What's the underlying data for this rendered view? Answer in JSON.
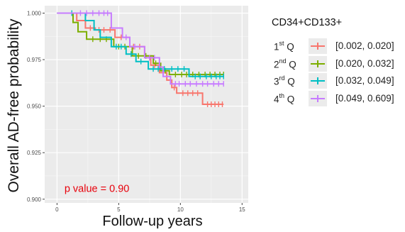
{
  "chart_data": {
    "type": "line",
    "xlabel": "Follow-up years",
    "ylabel": "Overall AD-free probability",
    "xlim": [
      -1,
      15.5
    ],
    "ylim": [
      0.898,
      1.004
    ],
    "x_ticks": [
      0,
      5,
      10,
      15
    ],
    "y_ticks": [
      0.9,
      0.925,
      0.95,
      0.975,
      1.0
    ],
    "x_tick_labels": [
      "0",
      "5",
      "10",
      "15"
    ],
    "y_tick_labels": [
      "0.900",
      "0.925",
      "0.950",
      "0.975",
      "1.000"
    ],
    "grid": true,
    "annotation": {
      "text": "p value = 0.90",
      "x": 0.6,
      "y": 0.904,
      "color": "#e8000b"
    },
    "legend": {
      "title": "CD34+CD133+",
      "placement": "right",
      "entries": [
        {
          "q_num": "1",
          "q_sup": "st",
          "q_letter": "Q",
          "range": "[0.002, 0.020]",
          "color": "#f8766d"
        },
        {
          "q_num": "2",
          "q_sup": "nd",
          "q_letter": "Q",
          "range": "[0.020, 0.032]",
          "color": "#7cae00"
        },
        {
          "q_num": "3",
          "q_sup": "rd",
          "q_letter": "Q",
          "range": "[0.032, 0.049]",
          "color": "#00bfc4"
        },
        {
          "q_num": "4",
          "q_sup": "th",
          "q_letter": "Q",
          "range": "[0.049, 0.609]",
          "color": "#c77cff"
        }
      ]
    },
    "series": [
      {
        "color": "#f8766d",
        "steps": [
          [
            0,
            1.0
          ],
          [
            1.6,
            1.0
          ],
          [
            1.6,
            0.996
          ],
          [
            2.3,
            0.996
          ],
          [
            2.3,
            0.992
          ],
          [
            3.1,
            0.992
          ],
          [
            3.1,
            0.991
          ],
          [
            4.7,
            0.991
          ],
          [
            4.7,
            0.987
          ],
          [
            5.9,
            0.987
          ],
          [
            5.9,
            0.982
          ],
          [
            7.1,
            0.982
          ],
          [
            7.1,
            0.977
          ],
          [
            7.6,
            0.977
          ],
          [
            7.6,
            0.972
          ],
          [
            8.3,
            0.972
          ],
          [
            8.3,
            0.968
          ],
          [
            8.9,
            0.968
          ],
          [
            8.9,
            0.964
          ],
          [
            9.3,
            0.964
          ],
          [
            9.3,
            0.96
          ],
          [
            9.7,
            0.96
          ],
          [
            9.7,
            0.957
          ],
          [
            11.8,
            0.957
          ],
          [
            11.8,
            0.951
          ],
          [
            13.5,
            0.951
          ]
        ],
        "censor_x": [
          2.7,
          3.4,
          3.8,
          4.3,
          5.2,
          6.2,
          6.7,
          7.9,
          8.6,
          9.5,
          10.2,
          10.6,
          11.0,
          11.4,
          12.2,
          12.5,
          12.8,
          13.1,
          13.4
        ]
      },
      {
        "color": "#7cae00",
        "steps": [
          [
            0,
            1.0
          ],
          [
            1.3,
            1.0
          ],
          [
            1.3,
            0.995
          ],
          [
            1.7,
            0.995
          ],
          [
            1.7,
            0.99
          ],
          [
            2.4,
            0.99
          ],
          [
            2.4,
            0.986
          ],
          [
            4.6,
            0.986
          ],
          [
            4.6,
            0.982
          ],
          [
            6.1,
            0.982
          ],
          [
            6.1,
            0.977
          ],
          [
            7.8,
            0.977
          ],
          [
            7.8,
            0.973
          ],
          [
            8.4,
            0.973
          ],
          [
            8.4,
            0.969
          ],
          [
            9.1,
            0.969
          ],
          [
            9.1,
            0.967
          ],
          [
            13.5,
            0.967
          ]
        ],
        "censor_x": [
          2.9,
          3.5,
          4.0,
          5.0,
          5.5,
          6.6,
          7.2,
          8.0,
          8.8,
          9.6,
          10.1,
          10.5,
          11.0,
          11.5,
          12.0,
          12.4,
          12.8,
          13.2,
          13.5
        ]
      },
      {
        "color": "#00bfc4",
        "steps": [
          [
            0,
            1.0
          ],
          [
            2.3,
            1.0
          ],
          [
            2.3,
            0.996
          ],
          [
            3.0,
            0.996
          ],
          [
            3.0,
            0.991
          ],
          [
            3.5,
            0.991
          ],
          [
            3.5,
            0.987
          ],
          [
            4.4,
            0.987
          ],
          [
            4.4,
            0.982
          ],
          [
            5.6,
            0.982
          ],
          [
            5.6,
            0.978
          ],
          [
            6.4,
            0.978
          ],
          [
            6.4,
            0.974
          ],
          [
            7.4,
            0.974
          ],
          [
            7.4,
            0.97
          ],
          [
            10.7,
            0.97
          ],
          [
            10.7,
            0.966
          ],
          [
            13.5,
            0.966
          ]
        ],
        "censor_x": [
          1.2,
          4.8,
          5.2,
          6.0,
          6.8,
          7.8,
          8.2,
          8.7,
          9.3,
          9.8,
          10.3,
          11.2,
          11.6,
          12.1,
          12.5,
          12.9,
          13.2,
          13.5
        ]
      },
      {
        "color": "#c77cff",
        "steps": [
          [
            0,
            1.0
          ],
          [
            4.4,
            1.0
          ],
          [
            4.4,
            0.992
          ],
          [
            5.3,
            0.992
          ],
          [
            5.3,
            0.987
          ],
          [
            5.9,
            0.987
          ],
          [
            5.9,
            0.982
          ],
          [
            7.1,
            0.982
          ],
          [
            7.1,
            0.976
          ],
          [
            8.3,
            0.976
          ],
          [
            8.3,
            0.971
          ],
          [
            8.6,
            0.971
          ],
          [
            8.6,
            0.966
          ],
          [
            9.2,
            0.966
          ],
          [
            9.2,
            0.962
          ],
          [
            13.5,
            0.962
          ]
        ],
        "censor_x": [
          1.9,
          2.4,
          2.9,
          3.4,
          3.8,
          4.1,
          5.6,
          6.3,
          7.5,
          7.9,
          9.6,
          9.9,
          10.4,
          10.8,
          11.3,
          11.8,
          12.2,
          12.7,
          13.1,
          13.5
        ]
      }
    ]
  }
}
